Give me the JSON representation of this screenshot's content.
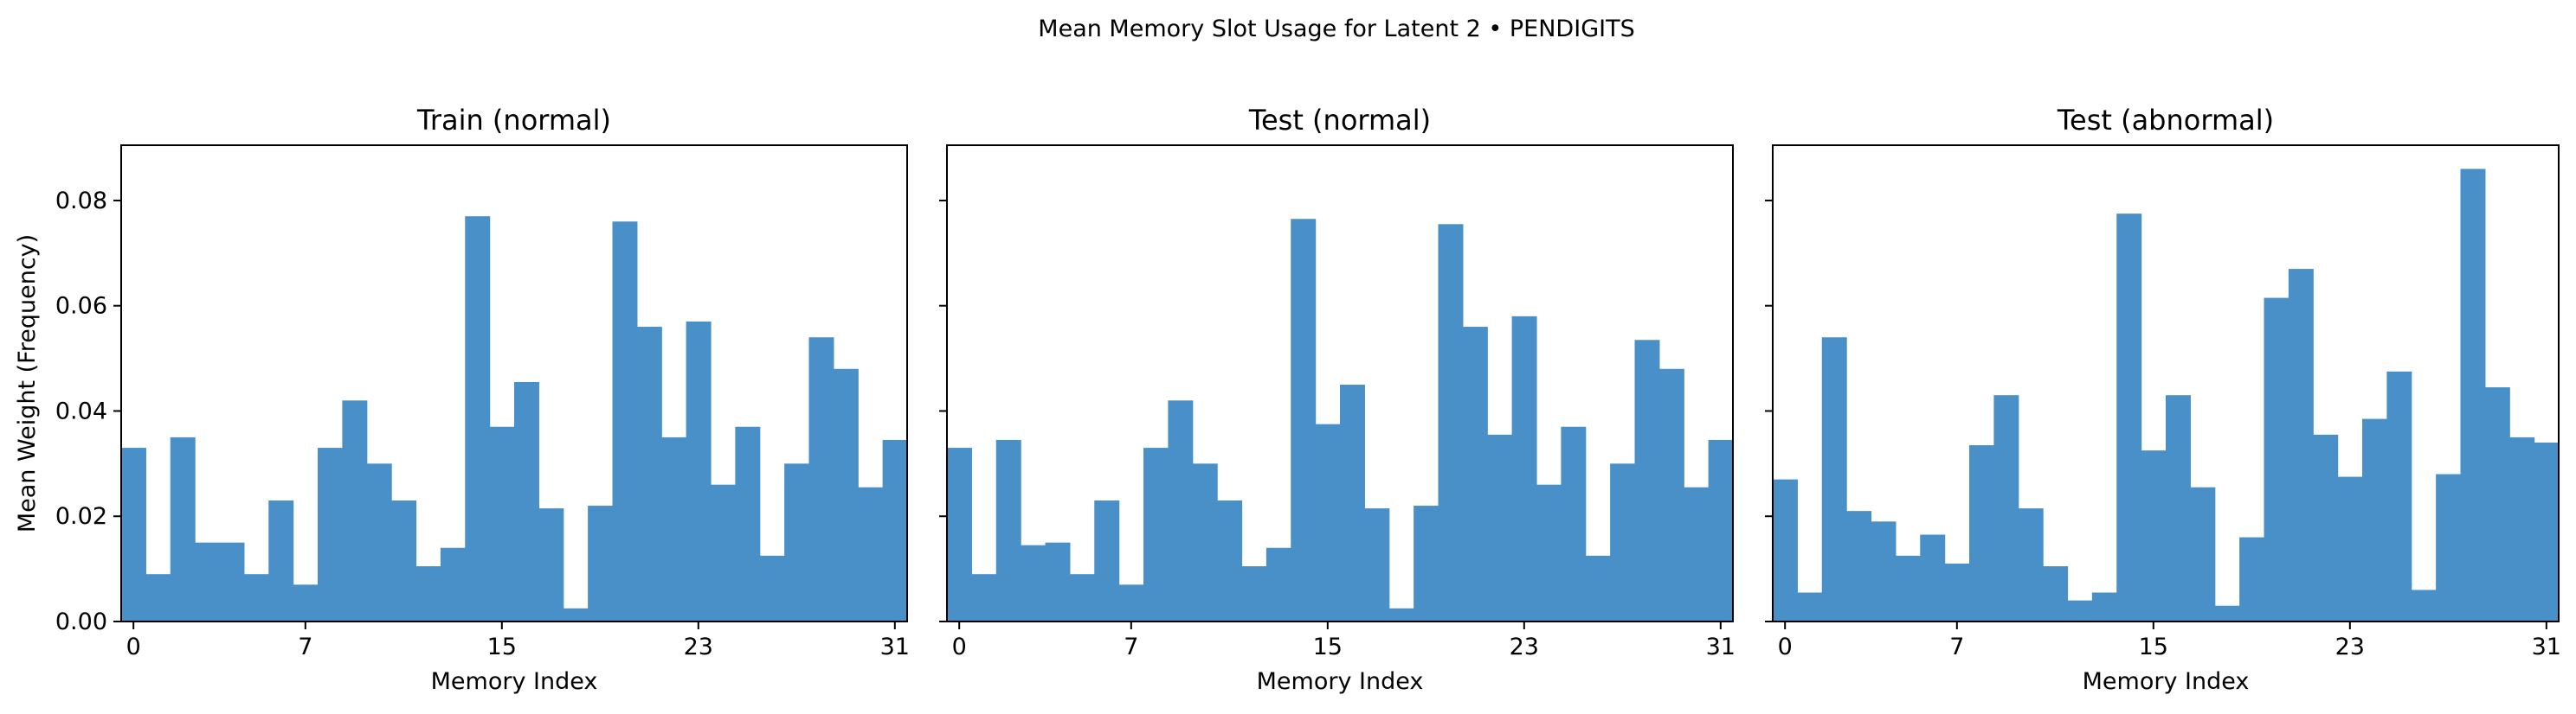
{
  "figure": {
    "title": "Mean Memory Slot Usage for Latent 2 • PENDIGITS",
    "bar_color": "#4a90c8",
    "frame_color": "#000000"
  },
  "chart_data": [
    {
      "type": "bar",
      "title": "Train (normal)",
      "xlabel": "Memory Index",
      "ylabel": "Mean Weight (Frequency)",
      "xticks": [
        0,
        7,
        15,
        23,
        31
      ],
      "yticks": [
        "0.00",
        "0.02",
        "0.04",
        "0.06",
        "0.08"
      ],
      "ylim": [
        0,
        0.0905
      ],
      "xlim": [
        -0.5,
        31.5
      ],
      "categories": [
        0,
        1,
        2,
        3,
        4,
        5,
        6,
        7,
        8,
        9,
        10,
        11,
        12,
        13,
        14,
        15,
        16,
        17,
        18,
        19,
        20,
        21,
        22,
        23,
        24,
        25,
        26,
        27,
        28,
        29,
        30,
        31
      ],
      "values": [
        0.033,
        0.009,
        0.035,
        0.015,
        0.015,
        0.009,
        0.023,
        0.007,
        0.033,
        0.042,
        0.03,
        0.023,
        0.0105,
        0.014,
        0.077,
        0.037,
        0.0455,
        0.0215,
        0.0025,
        0.022,
        0.076,
        0.056,
        0.035,
        0.057,
        0.026,
        0.037,
        0.0125,
        0.03,
        0.054,
        0.048,
        0.0255,
        0.0345
      ],
      "legend": "none",
      "grid": false
    },
    {
      "type": "bar",
      "title": "Test (normal)",
      "xlabel": "Memory Index",
      "ylabel": "",
      "xticks": [
        0,
        7,
        15,
        23,
        31
      ],
      "yticks": [
        "0.00",
        "0.02",
        "0.04",
        "0.06",
        "0.08"
      ],
      "ylim": [
        0,
        0.0905
      ],
      "xlim": [
        -0.5,
        31.5
      ],
      "categories": [
        0,
        1,
        2,
        3,
        4,
        5,
        6,
        7,
        8,
        9,
        10,
        11,
        12,
        13,
        14,
        15,
        16,
        17,
        18,
        19,
        20,
        21,
        22,
        23,
        24,
        25,
        26,
        27,
        28,
        29,
        30,
        31
      ],
      "values": [
        0.033,
        0.009,
        0.0345,
        0.0145,
        0.015,
        0.009,
        0.023,
        0.007,
        0.033,
        0.042,
        0.03,
        0.023,
        0.0105,
        0.014,
        0.0765,
        0.0375,
        0.045,
        0.0215,
        0.0025,
        0.022,
        0.0755,
        0.056,
        0.0355,
        0.058,
        0.026,
        0.037,
        0.0125,
        0.03,
        0.0535,
        0.048,
        0.0255,
        0.0345
      ],
      "legend": "none",
      "grid": false
    },
    {
      "type": "bar",
      "title": "Test (abnormal)",
      "xlabel": "Memory Index",
      "ylabel": "",
      "xticks": [
        0,
        7,
        15,
        23,
        31
      ],
      "yticks": [
        "0.00",
        "0.02",
        "0.04",
        "0.06",
        "0.08"
      ],
      "ylim": [
        0,
        0.0905
      ],
      "xlim": [
        -0.5,
        31.5
      ],
      "categories": [
        0,
        1,
        2,
        3,
        4,
        5,
        6,
        7,
        8,
        9,
        10,
        11,
        12,
        13,
        14,
        15,
        16,
        17,
        18,
        19,
        20,
        21,
        22,
        23,
        24,
        25,
        26,
        27,
        28,
        29,
        30,
        31
      ],
      "values": [
        0.027,
        0.0055,
        0.054,
        0.021,
        0.019,
        0.0125,
        0.0165,
        0.011,
        0.0335,
        0.043,
        0.0215,
        0.0105,
        0.004,
        0.0055,
        0.0775,
        0.0325,
        0.043,
        0.0255,
        0.003,
        0.016,
        0.0615,
        0.067,
        0.0355,
        0.0275,
        0.0385,
        0.0475,
        0.006,
        0.028,
        0.086,
        0.0445,
        0.035,
        0.034
      ],
      "legend": "none",
      "grid": false
    }
  ]
}
